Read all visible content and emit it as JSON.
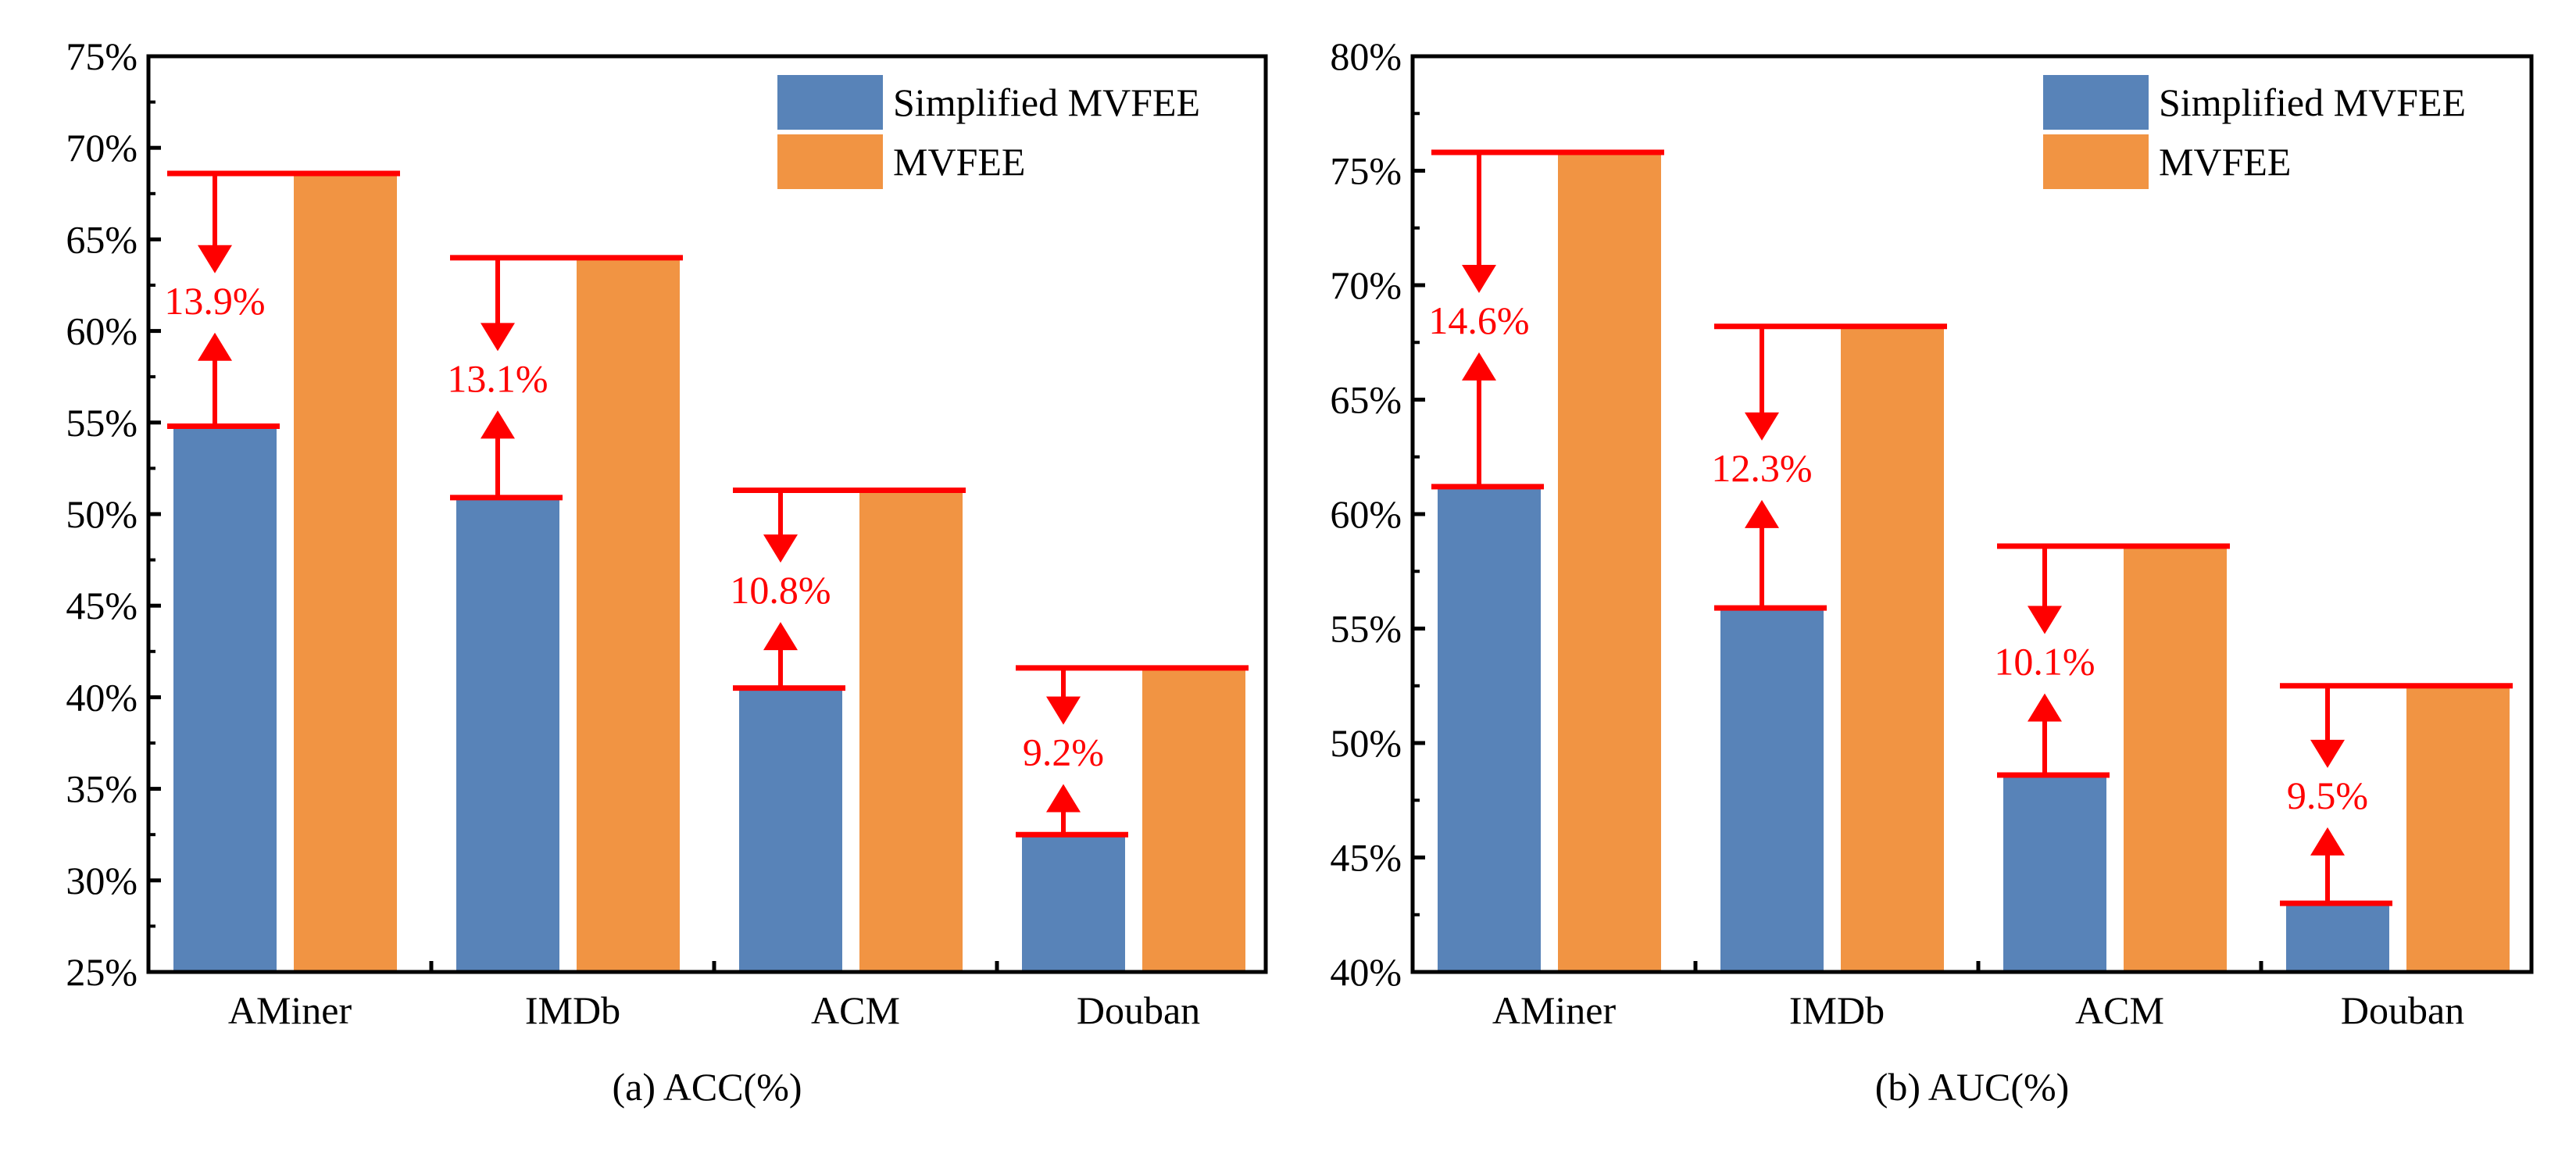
{
  "chart_data": [
    {
      "type": "bar",
      "title": "",
      "caption": "(a) ACC(%)",
      "xlabel": "",
      "ylabel": "",
      "categories": [
        "AMiner",
        "IMDb",
        "ACM",
        "Douban"
      ],
      "series": [
        {
          "name": "Simplified MVFEE",
          "values": [
            54.8,
            50.9,
            40.5,
            32.5
          ]
        },
        {
          "name": "MVFEE",
          "values": [
            68.6,
            64.0,
            51.3,
            41.6
          ]
        }
      ],
      "annotations": [
        "13.9%",
        "13.1%",
        "10.8%",
        "9.2%"
      ],
      "ylim": [
        25,
        75
      ],
      "yticks": [
        25,
        30,
        35,
        40,
        45,
        50,
        55,
        60,
        65,
        70,
        75
      ],
      "ytick_labels": [
        "25%",
        "30%",
        "35%",
        "40%",
        "45%",
        "50%",
        "55%",
        "60%",
        "65%",
        "70%",
        "75%"
      ],
      "legend_position": "top-right",
      "grid": false
    },
    {
      "type": "bar",
      "title": "",
      "caption": "(b) AUC(%)",
      "xlabel": "",
      "ylabel": "",
      "categories": [
        "AMiner",
        "IMDb",
        "ACM",
        "Douban"
      ],
      "series": [
        {
          "name": "Simplified MVFEE",
          "values": [
            61.2,
            55.9,
            48.6,
            43.0
          ]
        },
        {
          "name": "MVFEE",
          "values": [
            75.8,
            68.2,
            58.6,
            52.5
          ]
        }
      ],
      "annotations": [
        "14.6%",
        "12.3%",
        "10.1%",
        "9.5%"
      ],
      "ylim": [
        40,
        80
      ],
      "yticks": [
        40,
        45,
        50,
        55,
        60,
        65,
        70,
        75,
        80
      ],
      "ytick_labels": [
        "40%",
        "45%",
        "50%",
        "55%",
        "60%",
        "65%",
        "70%",
        "75%",
        "80%"
      ],
      "legend_position": "top-right",
      "grid": false
    }
  ],
  "colors": {
    "simplified": "#5883B8",
    "full": "#F19443",
    "annotation": "#FF0000",
    "axis": "#000000"
  }
}
